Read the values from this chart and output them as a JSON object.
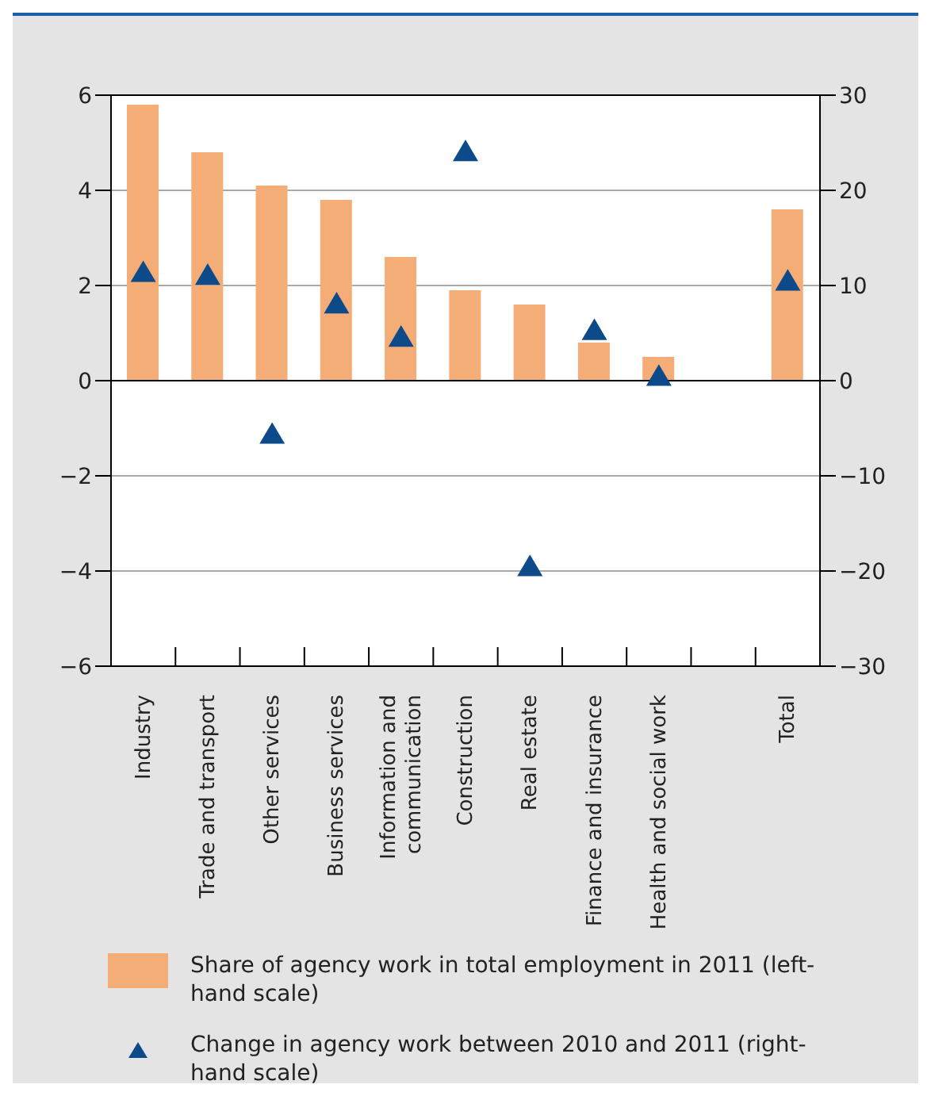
{
  "chart_data": {
    "type": "bar",
    "categories": [
      "Industry",
      "Trade and transport",
      "Other services",
      "Business services",
      "Information and communication",
      "Construction",
      "Real estate",
      "Finance and insurance",
      "Health and social work",
      null,
      "Total"
    ],
    "series": [
      {
        "name": "Share of agency work in total employment in 2011 (left-hand scale)",
        "color": "#f5ad78",
        "values": [
          5.8,
          4.8,
          4.1,
          3.8,
          2.6,
          1.9,
          1.6,
          0.8,
          0.5,
          null,
          3.6
        ]
      },
      {
        "name": "Change in agency work between 2010 and 2011 (right-hand scale)",
        "type": "scatter",
        "axis": "y2",
        "color": "#0d4a8a",
        "values": [
          11.3,
          11,
          -5.7,
          8,
          4.5,
          24,
          -19.6,
          5.2,
          0.4,
          null,
          10.4
        ]
      }
    ],
    "ylim": [
      -6,
      6
    ],
    "yticks": [
      -6,
      -4,
      -2,
      0,
      2,
      4,
      6
    ],
    "y2lim": [
      -30,
      30
    ],
    "y2ticks": [
      -30,
      -20,
      -10,
      0,
      10,
      20,
      30
    ],
    "grid": "y",
    "legend": "bottom",
    "marker": "triangle"
  }
}
